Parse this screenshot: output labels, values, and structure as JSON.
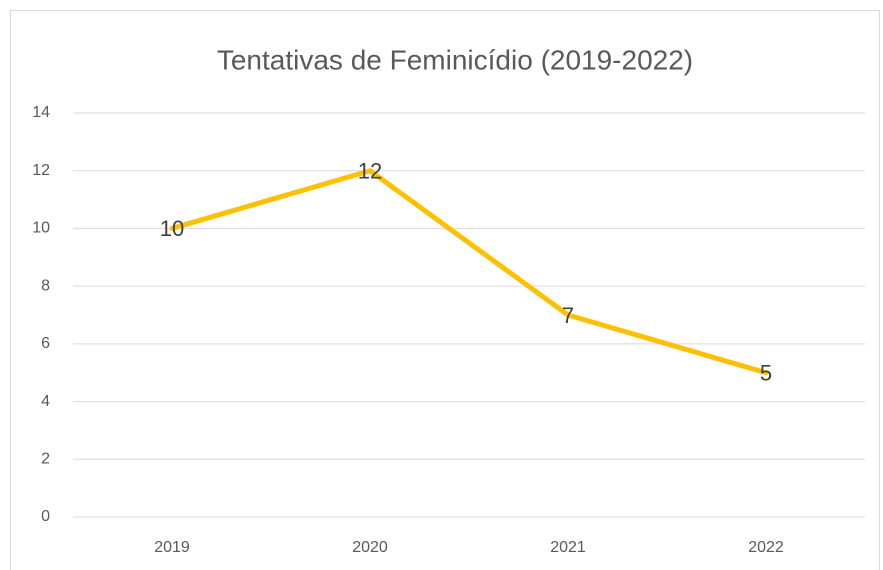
{
  "chart_data": {
    "type": "line",
    "title": "Tentativas de Feminicídio (2019-2022)",
    "categories": [
      "2019",
      "2020",
      "2021",
      "2022"
    ],
    "values": [
      10,
      12,
      7,
      5
    ],
    "color": "#ffc000",
    "ylim": [
      0,
      14
    ],
    "yticks": [
      0,
      2,
      4,
      6,
      8,
      10,
      12,
      14
    ],
    "grid": true
  }
}
